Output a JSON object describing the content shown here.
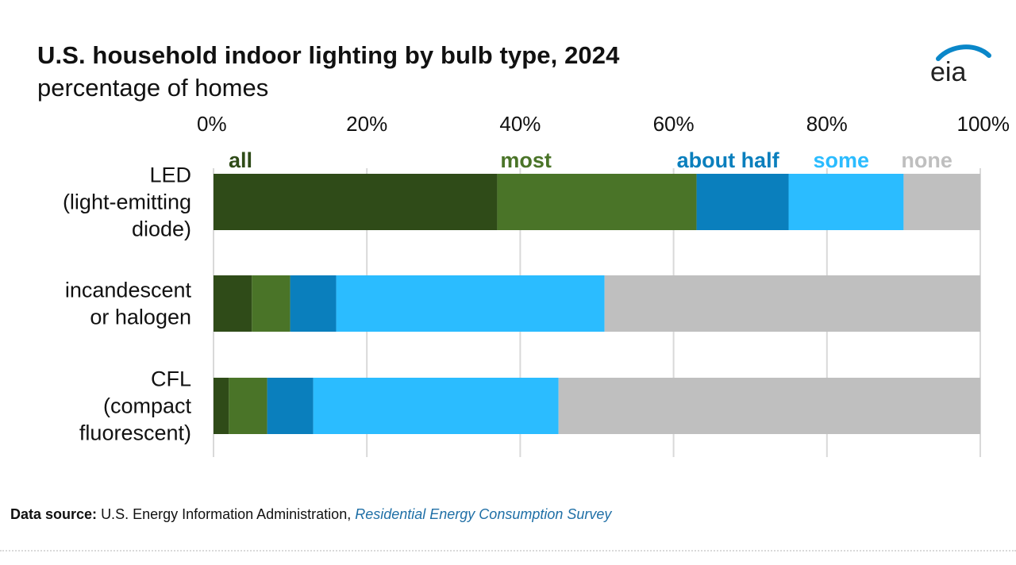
{
  "title": "U.S. household indoor lighting by bulb type, 2024",
  "subtitle": "percentage of homes",
  "logo_text": "eia",
  "source": {
    "label": "Data source:",
    "text": "U.S. Energy Information Administration,",
    "link_text": "Residential Energy Consumption Survey"
  },
  "colors": {
    "all": "#2f4b18",
    "most": "#4a7428",
    "about_half": "#0a7fbd",
    "some": "#2bbcff",
    "none": "#bfbfbf",
    "grid": "#d9d9d9",
    "logo_blue": "#0a87c9"
  },
  "chart_data": {
    "type": "bar",
    "orientation": "horizontal",
    "stacked": true,
    "xlim": [
      0,
      100
    ],
    "x_ticks": [
      "0%",
      "20%",
      "40%",
      "60%",
      "80%",
      "100%"
    ],
    "grid": true,
    "legend_placement": "top, inline above first bar",
    "categories": [
      [
        "LED",
        "(light-emitting",
        "diode)"
      ],
      [
        "incandescent",
        "or halogen"
      ],
      [
        "CFL",
        "(compact",
        "fluorescent)"
      ]
    ],
    "series": [
      {
        "name": "all",
        "color_key": "all",
        "values": [
          37,
          5,
          2
        ]
      },
      {
        "name": "most",
        "color_key": "most",
        "values": [
          26,
          5,
          5
        ]
      },
      {
        "name": "about half",
        "color_key": "about_half",
        "values": [
          12,
          6,
          6
        ]
      },
      {
        "name": "some",
        "color_key": "some",
        "values": [
          15,
          35,
          32
        ]
      },
      {
        "name": "none",
        "color_key": "none",
        "values": [
          10,
          49,
          55
        ]
      }
    ]
  }
}
